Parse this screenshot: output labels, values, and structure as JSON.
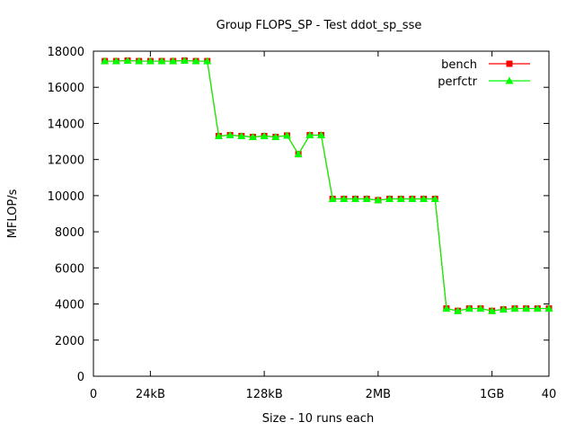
{
  "chart_data": {
    "type": "line",
    "title": "Group FLOPS_SP - Test ddot_sp_sse",
    "xlabel": "Size - 10 runs each",
    "ylabel": "MFLOP/s",
    "xlim": [
      0,
      40
    ],
    "ylim": [
      0,
      18000
    ],
    "x_ticks": [
      {
        "value": 0,
        "label": "0"
      },
      {
        "value": 5,
        "label": "24kB"
      },
      {
        "value": 15,
        "label": "128kB"
      },
      {
        "value": 25,
        "label": "2MB"
      },
      {
        "value": 35,
        "label": "1GB"
      },
      {
        "value": 40,
        "label": "40"
      }
    ],
    "y_ticks": [
      0,
      2000,
      4000,
      6000,
      8000,
      10000,
      12000,
      14000,
      16000,
      18000
    ],
    "grid": false,
    "legend_position": "top-right",
    "x": [
      1,
      2,
      3,
      4,
      5,
      6,
      7,
      8,
      9,
      10,
      11,
      12,
      13,
      14,
      15,
      16,
      17,
      18,
      19,
      20,
      21,
      22,
      23,
      24,
      25,
      26,
      27,
      28,
      29,
      30,
      31,
      32,
      33,
      34,
      35,
      36,
      37,
      38,
      39,
      40
    ],
    "series": [
      {
        "name": "bench",
        "color": "#ff0000",
        "marker": "square",
        "values": [
          17450,
          17450,
          17480,
          17450,
          17450,
          17450,
          17450,
          17480,
          17450,
          17450,
          13300,
          13350,
          13300,
          13250,
          13300,
          13250,
          13330,
          12300,
          13350,
          13350,
          9820,
          9820,
          9820,
          9820,
          9750,
          9820,
          9820,
          9820,
          9820,
          9820,
          3750,
          3620,
          3750,
          3750,
          3620,
          3700,
          3750,
          3750,
          3750,
          3750
        ]
      },
      {
        "name": "perfctr",
        "color": "#00ff00",
        "marker": "triangle",
        "values": [
          17450,
          17450,
          17480,
          17450,
          17450,
          17450,
          17450,
          17480,
          17450,
          17450,
          13300,
          13350,
          13300,
          13250,
          13300,
          13250,
          13330,
          12300,
          13350,
          13350,
          9820,
          9820,
          9820,
          9820,
          9750,
          9820,
          9820,
          9820,
          9820,
          9820,
          3750,
          3620,
          3750,
          3750,
          3620,
          3700,
          3750,
          3750,
          3750,
          3750
        ]
      }
    ]
  }
}
